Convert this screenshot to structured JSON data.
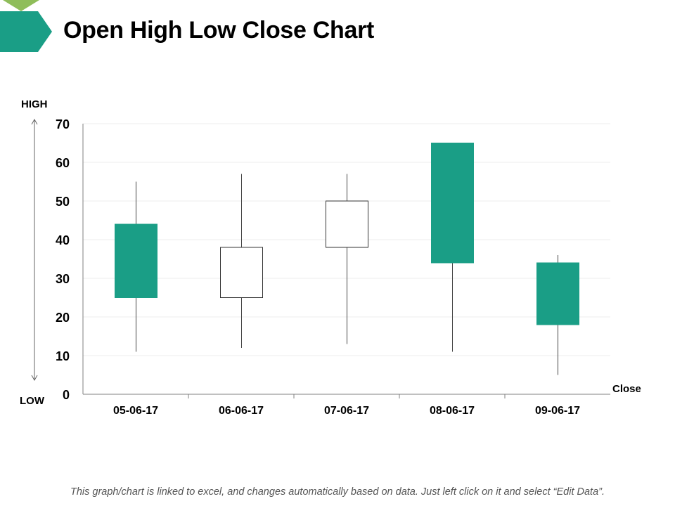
{
  "page": {
    "title": "Open High Low Close Chart",
    "footnote": "This graph/chart is linked to excel, and changes automatically based on data. Just left click on it and select “Edit Data”.",
    "accent_color": "#1a9e86",
    "deco_light_color": "#8fbd5a"
  },
  "chart_data": {
    "type": "candlestick",
    "categories": [
      "05-06-17",
      "06-06-17",
      "07-06-17",
      "08-06-17",
      "09-06-17"
    ],
    "series": [
      {
        "open": 44,
        "high": 55,
        "low": 11,
        "close": 25
      },
      {
        "open": 25,
        "high": 57,
        "low": 12,
        "close": 38
      },
      {
        "open": 38,
        "high": 57,
        "low": 13,
        "close": 50
      },
      {
        "open": 65,
        "high": 65,
        "low": 11,
        "close": 34
      },
      {
        "open": 34,
        "high": 36,
        "low": 5,
        "close": 18
      }
    ],
    "y_ticks": [
      "0",
      "10",
      "20",
      "30",
      "40",
      "50",
      "60",
      "70"
    ],
    "ylim": [
      0,
      70
    ],
    "high_label": "HIGH",
    "low_label": "LOW",
    "close_label": "Close",
    "grid": true,
    "colors": {
      "down": "#1a9e86",
      "up": "#ffffff",
      "wick": "#444444",
      "axis": "#808080",
      "grid": "#eeeeee"
    }
  }
}
